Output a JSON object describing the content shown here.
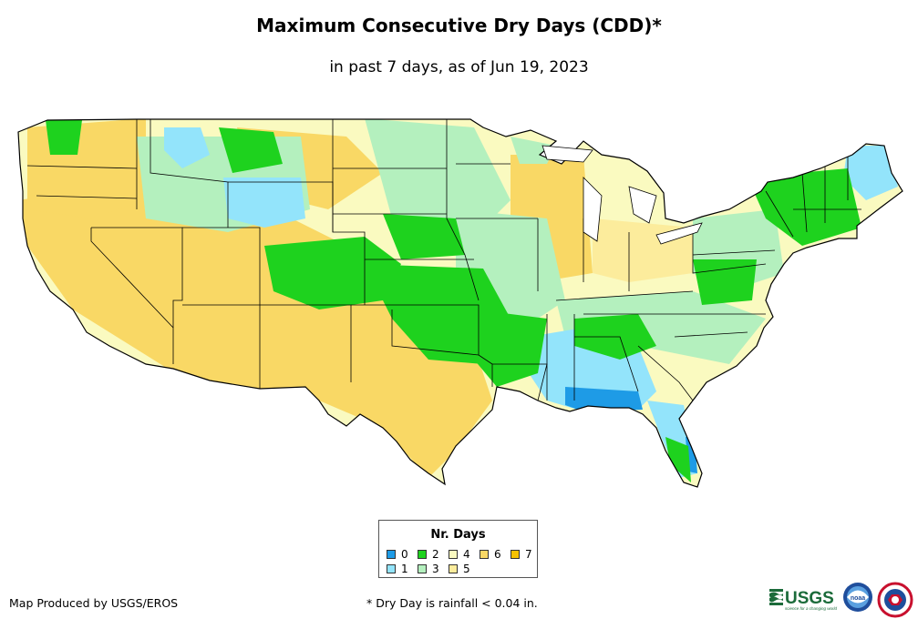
{
  "title": "Maximum Consecutive Dry Days (CDD)*",
  "subtitle": "in past 7 days, as of Jun 19, 2023",
  "legend": {
    "title": "Nr. Days",
    "items": [
      {
        "label": "0",
        "color": "#1e9be6"
      },
      {
        "label": "1",
        "color": "#93e4fb"
      },
      {
        "label": "2",
        "color": "#1ed21e"
      },
      {
        "label": "3",
        "color": "#b4f0be"
      },
      {
        "label": "4",
        "color": "#fafac0"
      },
      {
        "label": "5",
        "color": "#fcec9c"
      },
      {
        "label": "6",
        "color": "#f9d865"
      },
      {
        "label": "7",
        "color": "#f7c200"
      }
    ]
  },
  "footer": {
    "produced_by": "Map Produced by USGS/EROS",
    "footnote": "* Dry Day is rainfall < 0.04 in."
  },
  "logos": {
    "usgs_text": "USGS",
    "usgs_tagline": "science for a changing world",
    "noaa_text": "noaa"
  },
  "colors": {
    "background": "#ffffff",
    "border": "#000000"
  }
}
